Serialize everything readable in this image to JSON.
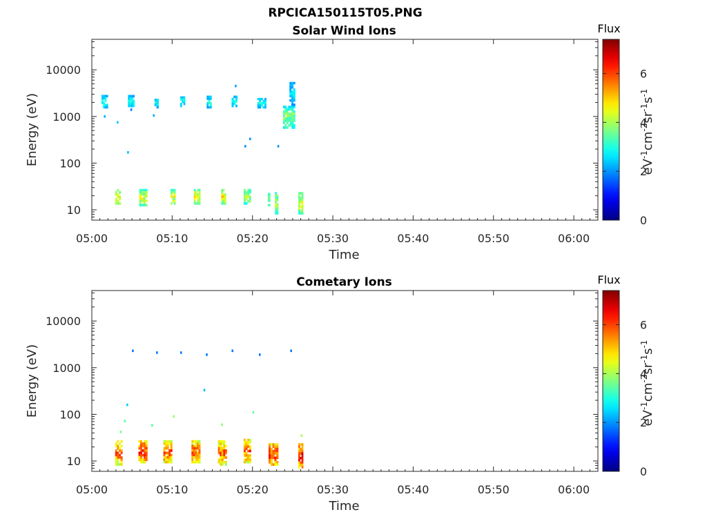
{
  "figure_title": "RPCICA150115T05.PNG",
  "chart_data": [
    {
      "type": "heatmap",
      "title": "Solar Wind Ions",
      "xlabel": "Time",
      "ylabel": "Energy (eV)",
      "x_tick_labels": [
        "05:00",
        "05:10",
        "05:20",
        "05:30",
        "05:40",
        "05:50",
        "06:00"
      ],
      "x_range_minutes": [
        0,
        63
      ],
      "y_tick_labels": [
        "10",
        "100",
        "1000",
        "10000"
      ],
      "y_tick_values": [
        10,
        100,
        1000,
        10000
      ],
      "y_range": [
        6,
        45000
      ],
      "y_scale": "log",
      "colorbar": {
        "title": "Flux",
        "label": "eV-1cm-2sr-1s-1",
        "range": [
          0,
          7.4
        ],
        "ticks": [
          "0",
          "2",
          "4",
          "6"
        ],
        "colormap": "jet"
      },
      "patches": [
        {
          "t": [
            1.2,
            2.0
          ],
          "e": [
            1500,
            2900
          ],
          "flux": 3.0
        },
        {
          "t": [
            2.9,
            3.6
          ],
          "e": [
            13,
            28
          ],
          "flux": 4.6
        },
        {
          "t": [
            4.5,
            5.3
          ],
          "e": [
            1600,
            2900
          ],
          "flux": 3.0
        },
        {
          "t": [
            5.9,
            6.9
          ],
          "e": [
            12,
            28
          ],
          "flux": 4.4
        },
        {
          "t": [
            7.8,
            8.3
          ],
          "e": [
            1500,
            2700
          ],
          "flux": 2.9
        },
        {
          "t": [
            9.8,
            10.4
          ],
          "e": [
            13,
            28
          ],
          "flux": 4.6
        },
        {
          "t": [
            11.0,
            11.6
          ],
          "e": [
            1600,
            2700
          ],
          "flux": 3.0
        },
        {
          "t": [
            12.7,
            13.5
          ],
          "e": [
            13,
            28
          ],
          "flux": 4.7
        },
        {
          "t": [
            14.3,
            14.9
          ],
          "e": [
            1500,
            2800
          ],
          "flux": 3.0
        },
        {
          "t": [
            16.1,
            16.7
          ],
          "e": [
            13,
            28
          ],
          "flux": 4.6
        },
        {
          "t": [
            17.4,
            18.1
          ],
          "e": [
            1600,
            2800
          ],
          "flux": 3.0
        },
        {
          "t": [
            18.9,
            19.8
          ],
          "e": [
            13,
            28
          ],
          "flux": 4.3
        },
        {
          "t": [
            20.6,
            21.7
          ],
          "e": [
            1500,
            2500
          ],
          "flux": 2.9
        },
        {
          "t": [
            21.9,
            22.2
          ],
          "e": [
            12,
            23
          ],
          "flux": 3.8
        },
        {
          "t": [
            22.8,
            23.2
          ],
          "e": [
            8,
            24
          ],
          "flux": 4.2
        },
        {
          "t": [
            23.8,
            25.3
          ],
          "e": [
            550,
            1700
          ],
          "flux": 3.8
        },
        {
          "t": [
            24.6,
            25.3
          ],
          "e": [
            1700,
            5500
          ],
          "flux": 2.7
        },
        {
          "t": [
            25.7,
            26.3
          ],
          "e": [
            8,
            24
          ],
          "flux": 4.4
        }
      ],
      "points": [
        {
          "t": 1.6,
          "e": 1000,
          "flux": 2.2
        },
        {
          "t": 3.2,
          "e": 750,
          "flux": 2.4
        },
        {
          "t": 4.5,
          "e": 170,
          "flux": 2.3
        },
        {
          "t": 4.9,
          "e": 1400,
          "flux": 1.8
        },
        {
          "t": 7.7,
          "e": 1050,
          "flux": 2.2
        },
        {
          "t": 17.9,
          "e": 4500,
          "flux": 2.1
        },
        {
          "t": 19.1,
          "e": 230,
          "flux": 2.0
        },
        {
          "t": 19.7,
          "e": 330,
          "flux": 2.0
        },
        {
          "t": 23.2,
          "e": 230,
          "flux": 2.0
        }
      ]
    },
    {
      "type": "heatmap",
      "title": "Cometary Ions",
      "xlabel": "Time",
      "ylabel": "Energy (eV)",
      "x_tick_labels": [
        "05:00",
        "05:10",
        "05:20",
        "05:30",
        "05:40",
        "05:50",
        "06:00"
      ],
      "x_range_minutes": [
        0,
        63
      ],
      "y_tick_labels": [
        "10",
        "100",
        "1000",
        "10000"
      ],
      "y_tick_values": [
        10,
        100,
        1000,
        10000
      ],
      "y_range": [
        6,
        45000
      ],
      "y_scale": "log",
      "colorbar": {
        "title": "Flux",
        "label": "eV-1cm-2sr-1s-1",
        "range": [
          0,
          7.4
        ],
        "ticks": [
          "0",
          "2",
          "4",
          "6"
        ],
        "colormap": "jet"
      },
      "patches": [
        {
          "t": [
            2.9,
            3.8
          ],
          "e": [
            8,
            28
          ],
          "flux": 5.8
        },
        {
          "t": [
            5.8,
            6.9
          ],
          "e": [
            9,
            28
          ],
          "flux": 6.2
        },
        {
          "t": [
            8.9,
            10.0
          ],
          "e": [
            9,
            28
          ],
          "flux": 6.0
        },
        {
          "t": [
            12.4,
            13.5
          ],
          "e": [
            9,
            28
          ],
          "flux": 5.9
        },
        {
          "t": [
            15.7,
            16.8
          ],
          "e": [
            8,
            28
          ],
          "flux": 5.8
        },
        {
          "t": [
            18.9,
            19.8
          ],
          "e": [
            9,
            30
          ],
          "flux": 6.1
        },
        {
          "t": [
            22.0,
            23.2
          ],
          "e": [
            8,
            24
          ],
          "flux": 6.3
        },
        {
          "t": [
            25.7,
            26.3
          ],
          "e": [
            7,
            24
          ],
          "flux": 6.5
        }
      ],
      "points": [
        {
          "t": 5.1,
          "e": 2300,
          "flux": 1.8
        },
        {
          "t": 8.1,
          "e": 2100,
          "flux": 1.8
        },
        {
          "t": 11.1,
          "e": 2100,
          "flux": 1.8
        },
        {
          "t": 14.3,
          "e": 1900,
          "flux": 1.8
        },
        {
          "t": 17.5,
          "e": 2300,
          "flux": 1.8
        },
        {
          "t": 20.9,
          "e": 1900,
          "flux": 1.8
        },
        {
          "t": 24.8,
          "e": 2300,
          "flux": 1.8
        },
        {
          "t": 4.4,
          "e": 160,
          "flux": 2.4
        },
        {
          "t": 4.1,
          "e": 72,
          "flux": 3.4
        },
        {
          "t": 3.6,
          "e": 42,
          "flux": 3.6
        },
        {
          "t": 7.5,
          "e": 58,
          "flux": 3.4
        },
        {
          "t": 10.2,
          "e": 90,
          "flux": 3.9
        },
        {
          "t": 14.0,
          "e": 330,
          "flux": 2.3
        },
        {
          "t": 16.2,
          "e": 60,
          "flux": 3.8
        },
        {
          "t": 20.1,
          "e": 110,
          "flux": 3.5
        },
        {
          "t": 26.1,
          "e": 35,
          "flux": 4.0
        }
      ]
    }
  ]
}
